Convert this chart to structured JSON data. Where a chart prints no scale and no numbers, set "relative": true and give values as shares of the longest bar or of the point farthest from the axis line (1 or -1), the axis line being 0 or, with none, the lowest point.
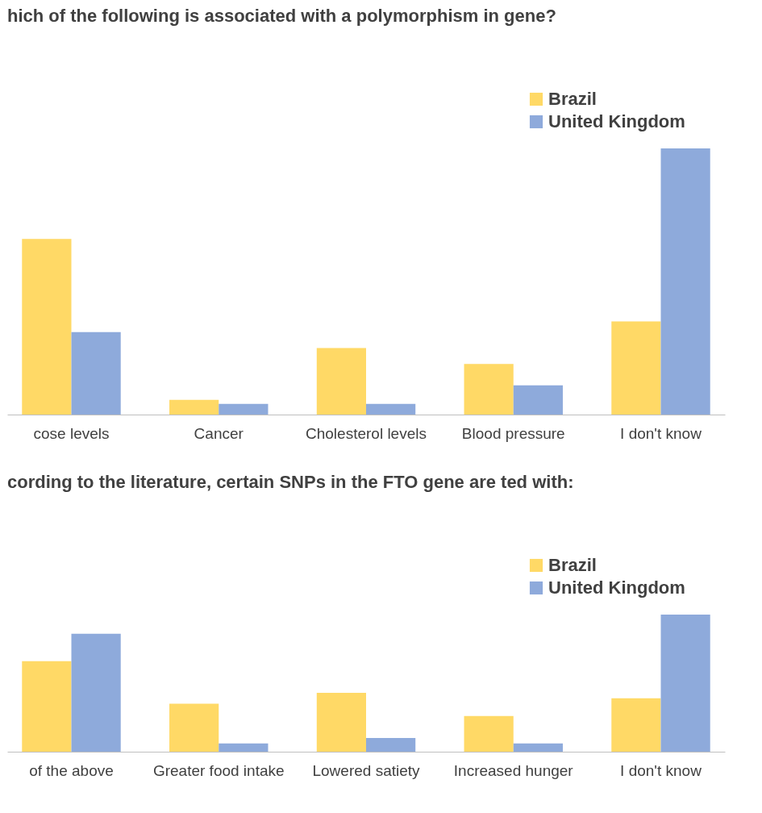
{
  "chart_data": [
    {
      "type": "bar",
      "title": "hich of the following is associated with a polymorphism in gene?",
      "relative": true,
      "legend": "top right",
      "categories": [
        "cose levels",
        "Cancer",
        "Cholesterol levels",
        "Blood pressure",
        "I don't know"
      ],
      "series": [
        {
          "name": "Brazil",
          "color": "#ffd966",
          "values": [
            0.66,
            0.055,
            0.25,
            0.19,
            0.35
          ]
        },
        {
          "name": "United Kingdom",
          "color": "#8eaadb",
          "values": [
            0.31,
            0.04,
            0.04,
            0.11,
            1
          ]
        }
      ]
    },
    {
      "type": "bar",
      "title": "cording to the literature, certain SNPs in the FTO gene are ted with:",
      "relative": true,
      "legend": "top right",
      "categories": [
        "of the above",
        "Greater food intake",
        "Lowered satiety",
        "Increased hunger",
        "I don't know"
      ],
      "series": [
        {
          "name": "Brazil",
          "color": "#ffd966",
          "values": [
            0.66,
            0.35,
            0.43,
            0.26,
            0.39
          ]
        },
        {
          "name": "United Kingdom",
          "color": "#8eaadb",
          "values": [
            0.86,
            0.06,
            0.1,
            0.06,
            1
          ]
        }
      ]
    }
  ]
}
